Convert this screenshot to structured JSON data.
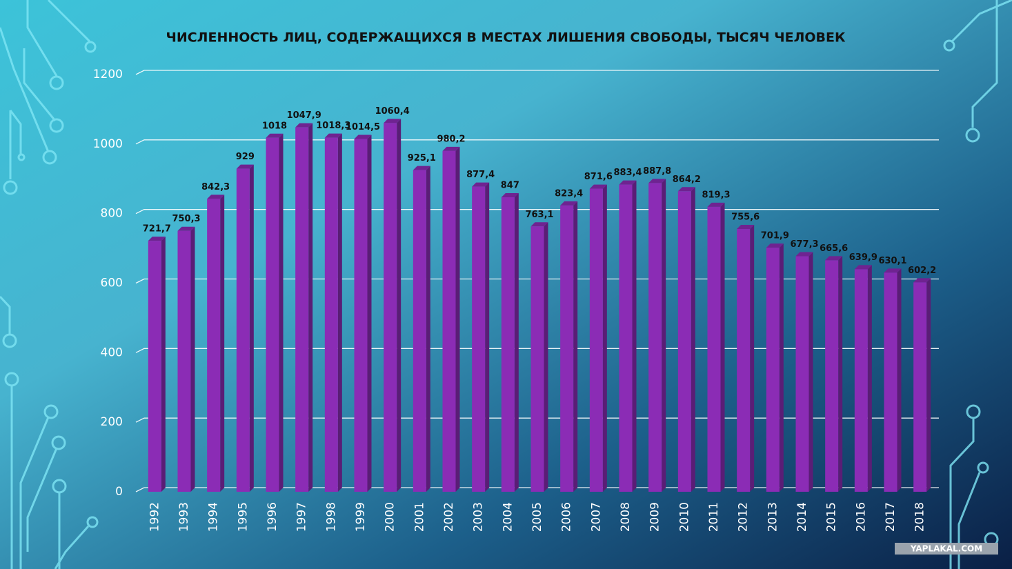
{
  "chart_data": {
    "type": "bar",
    "title": "ЧИСЛЕННОСТЬ ЛИЦ, СОДЕРЖАЩИХСЯ В МЕСТАХ ЛИШЕНИЯ СВОБОДЫ, ТЫСЯЧ ЧЕЛОВЕК",
    "categories": [
      "1992",
      "1993",
      "1994",
      "1995",
      "1996",
      "1997",
      "1998",
      "1999",
      "2000",
      "2001",
      "2002",
      "2003",
      "2004",
      "2005",
      "2006",
      "2007",
      "2008",
      "2009",
      "2010",
      "2011",
      "2012",
      "2013",
      "2014",
      "2015",
      "2016",
      "2017",
      "2018"
    ],
    "values": [
      721.7,
      750.3,
      842.3,
      929,
      1018,
      1047.9,
      1018.3,
      1014.5,
      1060.4,
      925.1,
      980.2,
      877.4,
      847,
      763.1,
      823.4,
      871.6,
      883.4,
      887.8,
      864.2,
      819.3,
      755.6,
      701.9,
      677.3,
      665.6,
      639.9,
      630.1,
      602.2
    ],
    "value_labels": [
      "721,7",
      "750,3",
      "842,3",
      "929",
      "1018",
      "1047,9",
      "1018,3",
      "1014,5",
      "1060,4",
      "925,1",
      "980,2",
      "877,4",
      "847",
      "763,1",
      "823,4",
      "871,6",
      "883,4",
      "887,8",
      "864,2",
      "819,3",
      "755,6",
      "701,9",
      "677,3",
      "665,6",
      "639,9",
      "630,1",
      "602,2"
    ],
    "color": "#8b2cb5",
    "ylim": [
      0,
      1200
    ],
    "yticks": [
      0,
      200,
      400,
      600,
      800,
      1000,
      1200
    ],
    "grid": true
  },
  "watermark": "YAPLAKAL.COM"
}
